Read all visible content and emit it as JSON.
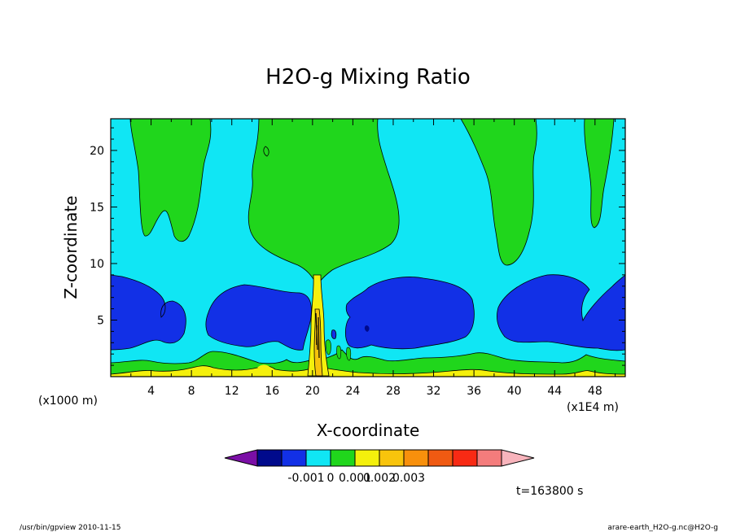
{
  "chart_data": {
    "type": "contour",
    "title": "H2O-g Mixing Ratio",
    "xlabel": "X-coordinate",
    "ylabel": "Z-coordinate",
    "x_unit": "(x1E4 m)",
    "y_unit": "(x1000 m)",
    "x_ticks": [
      4,
      8,
      12,
      16,
      20,
      24,
      28,
      32,
      36,
      40,
      44,
      48
    ],
    "y_ticks": [
      5,
      10,
      15,
      20
    ],
    "xlim": [
      0,
      51
    ],
    "ylim": [
      0,
      22.8
    ],
    "colorbar": {
      "colors": [
        "#7b0fa6",
        "#000a8c",
        "#1230e6",
        "#10e6f4",
        "#20d61c",
        "#f4f00c",
        "#f8c40c",
        "#f8900c",
        "#f05a12",
        "#f82a14",
        "#f47c7c",
        "#f8b4bc"
      ],
      "labels": [
        "-0.001",
        "0",
        "0.001",
        "0.002",
        "0.003"
      ]
    },
    "time_label": "t=163800 s",
    "footer_left": "/usr/bin/gpview   2010-11-15",
    "footer_right": "arare-earth_H2O-g.nc@H2O-g"
  }
}
